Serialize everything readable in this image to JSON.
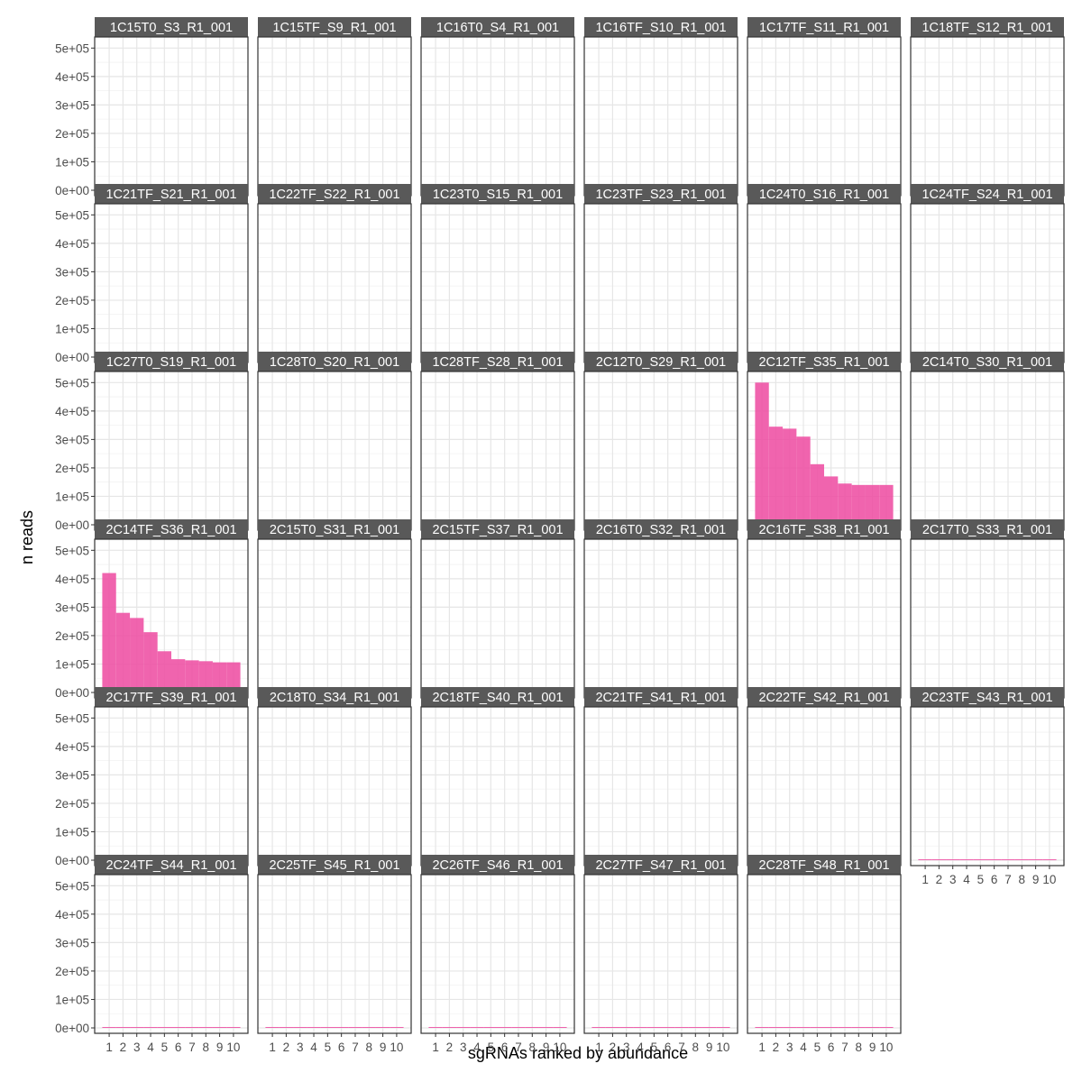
{
  "chart_data": {
    "type": "bar",
    "xlabel": "sgRNAs ranked by abundance",
    "ylabel": "n reads",
    "ylim": [
      0,
      520000
    ],
    "y_ticks": [
      0,
      100000,
      200000,
      300000,
      400000,
      500000
    ],
    "y_tick_labels": [
      "0e+00",
      "1e+05",
      "2e+05",
      "3e+05",
      "4e+05",
      "5e+05"
    ],
    "x_categories": [
      1,
      2,
      3,
      4,
      5,
      6,
      7,
      8,
      9,
      10
    ],
    "x_tick_labels": [
      "1",
      "2",
      "3",
      "4",
      "5",
      "6",
      "7",
      "8",
      "9",
      "10"
    ],
    "grid": true,
    "bar_color": "#EE4FA3",
    "panels": [
      {
        "name": "1C15T0_S3_R1_001",
        "values": [
          500,
          500,
          500,
          500,
          500,
          500,
          500,
          500,
          500,
          500
        ]
      },
      {
        "name": "1C15TF_S9_R1_001",
        "values": [
          500,
          500,
          500,
          500,
          500,
          500,
          500,
          500,
          500,
          500
        ]
      },
      {
        "name": "1C16T0_S4_R1_001",
        "values": [
          500,
          500,
          500,
          500,
          500,
          500,
          500,
          500,
          500,
          500
        ]
      },
      {
        "name": "1C16TF_S10_R1_001",
        "values": [
          500,
          500,
          500,
          500,
          500,
          500,
          500,
          500,
          500,
          500
        ]
      },
      {
        "name": "1C17TF_S11_R1_001",
        "values": [
          500,
          500,
          500,
          500,
          500,
          500,
          500,
          500,
          500,
          500
        ]
      },
      {
        "name": "1C18TF_S12_R1_001",
        "values": [
          500,
          500,
          500,
          500,
          500,
          500,
          500,
          500,
          500,
          500
        ]
      },
      {
        "name": "1C21TF_S21_R1_001",
        "values": [
          3000,
          2500,
          0,
          0,
          0,
          0,
          0,
          0,
          0,
          0
        ]
      },
      {
        "name": "1C22TF_S22_R1_001",
        "values": [
          3000,
          2500,
          0,
          0,
          0,
          0,
          0,
          0,
          0,
          0
        ]
      },
      {
        "name": "1C23T0_S15_R1_001",
        "values": [
          0,
          0,
          0,
          0,
          0,
          0,
          0,
          0,
          0,
          0
        ]
      },
      {
        "name": "1C23TF_S23_R1_001",
        "values": [
          3000,
          2500,
          0,
          0,
          0,
          0,
          0,
          0,
          0,
          0
        ]
      },
      {
        "name": "1C24T0_S16_R1_001",
        "values": [
          0,
          0,
          0,
          0,
          0,
          0,
          0,
          0,
          0,
          0
        ]
      },
      {
        "name": "1C24TF_S24_R1_001",
        "values": [
          3000,
          2500,
          0,
          0,
          0,
          0,
          0,
          0,
          0,
          0
        ]
      },
      {
        "name": "1C27T0_S19_R1_001",
        "values": [
          0,
          0,
          0,
          0,
          0,
          0,
          0,
          0,
          0,
          0
        ]
      },
      {
        "name": "1C28T0_S20_R1_001",
        "values": [
          3000,
          0,
          0,
          0,
          0,
          0,
          0,
          0,
          0,
          0
        ]
      },
      {
        "name": "1C28TF_S28_R1_001",
        "values": [
          3000,
          2500,
          0,
          0,
          0,
          0,
          0,
          0,
          0,
          0
        ]
      },
      {
        "name": "2C12T0_S29_R1_001",
        "values": [
          12000,
          0,
          0,
          0,
          0,
          0,
          0,
          0,
          0,
          0
        ]
      },
      {
        "name": "2C12TF_S35_R1_001",
        "values": [
          500000,
          345000,
          338000,
          310000,
          213000,
          170000,
          145000,
          140000,
          140000,
          140000
        ]
      },
      {
        "name": "2C14T0_S30_R1_001",
        "values": [
          3000,
          2500,
          2500,
          0,
          0,
          0,
          0,
          0,
          0,
          0
        ]
      },
      {
        "name": "2C14TF_S36_R1_001",
        "values": [
          420000,
          280000,
          262000,
          212000,
          145000,
          117000,
          113000,
          110000,
          106000,
          106000
        ]
      },
      {
        "name": "2C15T0_S31_R1_001",
        "values": [
          0,
          0,
          0,
          0,
          0,
          0,
          0,
          0,
          0,
          0
        ]
      },
      {
        "name": "2C15TF_S37_R1_001",
        "values": [
          2500,
          2500,
          2500,
          2500,
          2500,
          2500,
          2500,
          0,
          0,
          0
        ]
      },
      {
        "name": "2C16T0_S32_R1_001",
        "values": [
          3000,
          0,
          0,
          0,
          0,
          0,
          0,
          0,
          0,
          0
        ]
      },
      {
        "name": "2C16TF_S38_R1_001",
        "values": [
          2500,
          2500,
          2500,
          2500,
          0,
          0,
          0,
          0,
          0,
          0
        ]
      },
      {
        "name": "2C17T0_S33_R1_001",
        "values": [
          3000,
          0,
          0,
          0,
          0,
          0,
          0,
          0,
          0,
          0
        ]
      },
      {
        "name": "2C17TF_S39_R1_001",
        "values": [
          9000,
          5000,
          4000,
          3000,
          2000,
          500,
          500,
          500,
          500,
          500
        ]
      },
      {
        "name": "2C18T0_S34_R1_001",
        "values": [
          500,
          500,
          500,
          500,
          500,
          500,
          500,
          500,
          500,
          500
        ]
      },
      {
        "name": "2C18TF_S40_R1_001",
        "values": [
          500,
          500,
          500,
          500,
          500,
          500,
          500,
          500,
          500,
          500
        ]
      },
      {
        "name": "2C21TF_S41_R1_001",
        "values": [
          9000,
          5000,
          3000,
          3000,
          500,
          500,
          500,
          500,
          500,
          500
        ]
      },
      {
        "name": "2C22TF_S42_R1_001",
        "values": [
          6000,
          500,
          500,
          500,
          500,
          500,
          500,
          500,
          500,
          500
        ]
      },
      {
        "name": "2C23TF_S43_R1_001",
        "values": [
          500,
          500,
          500,
          500,
          500,
          500,
          500,
          500,
          500,
          500
        ]
      },
      {
        "name": "2C24TF_S44_R1_001",
        "values": [
          3000,
          3000,
          3000,
          3000,
          500,
          500,
          500,
          500,
          500,
          500
        ]
      },
      {
        "name": "2C25TF_S45_R1_001",
        "values": [
          500,
          500,
          500,
          500,
          500,
          500,
          500,
          500,
          500,
          500
        ]
      },
      {
        "name": "2C26TF_S46_R1_001",
        "values": [
          500,
          500,
          500,
          500,
          500,
          500,
          500,
          500,
          500,
          500
        ]
      },
      {
        "name": "2C27TF_S47_R1_001",
        "values": [
          500,
          500,
          500,
          500,
          500,
          500,
          500,
          500,
          500,
          500
        ]
      },
      {
        "name": "2C28TF_S48_R1_001",
        "values": [
          500,
          500,
          500,
          500,
          500,
          500,
          500,
          500,
          500,
          500
        ]
      }
    ]
  }
}
